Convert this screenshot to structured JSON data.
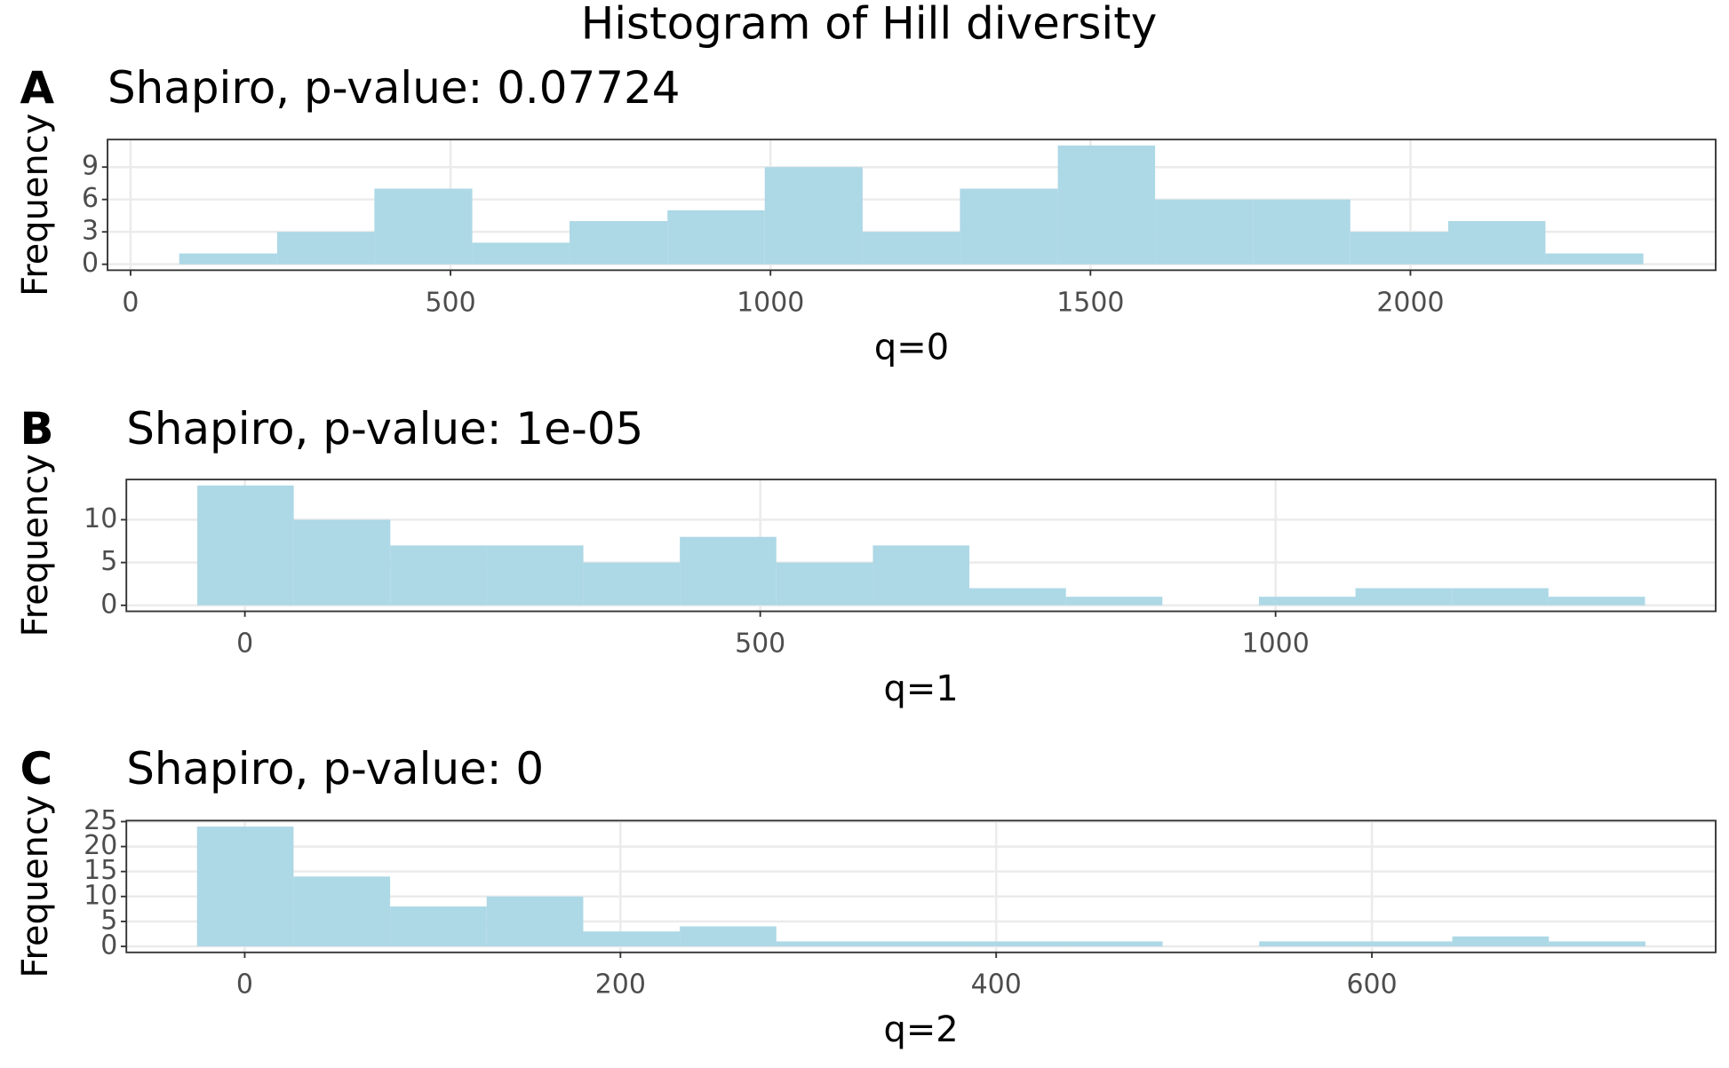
{
  "title": "Histogram of Hill diversity",
  "chart_data": [
    {
      "type": "histogram",
      "tag": "A",
      "title": "Shapiro, p-value: 0.07724",
      "x_label": "q=0",
      "y_label": "Frequency",
      "color": "#add8e6",
      "grid": true,
      "bins": [
        76,
        229,
        381,
        534,
        686,
        839,
        991,
        1144,
        1296,
        1449,
        1601,
        1754,
        1906,
        2059,
        2211,
        2364
      ],
      "counts": [
        1,
        3,
        7,
        2,
        4,
        5,
        9,
        3,
        7,
        11,
        6,
        6,
        3,
        4,
        1
      ],
      "xlim": [
        -36,
        2477
      ],
      "xticks": [
        0,
        500,
        1000,
        1500,
        2000
      ],
      "ylim": [
        -0.55,
        11.55
      ],
      "yticks": [
        0,
        3,
        6,
        9
      ]
    },
    {
      "type": "histogram",
      "tag": "B",
      "title": "Shapiro, p-value: 1e-05",
      "x_label": "q=1",
      "y_label": "Frequency",
      "color": "#add8e6",
      "grid": true,
      "bins": [
        -46.2,
        47.4,
        141.1,
        234.7,
        328.4,
        422.0,
        515.6,
        609.3,
        702.9,
        796.6,
        890.2,
        983.9,
        1077.5,
        1171.1,
        1264.8,
        1358.4
      ],
      "counts": [
        14,
        10,
        7,
        7,
        5,
        8,
        5,
        7,
        2,
        1,
        0,
        1,
        2,
        2,
        1
      ],
      "xlim": [
        -115,
        1427
      ],
      "xticks": [
        0,
        500,
        1000
      ],
      "ylim": [
        -0.7,
        14.7
      ],
      "yticks": [
        0,
        5,
        10
      ]
    },
    {
      "type": "histogram",
      "tag": "C",
      "title": "Shapiro, p-value: 0",
      "x_label": "q=2",
      "y_label": "Frequency",
      "color": "#add8e6",
      "grid": true,
      "bins": [
        -25.4,
        26,
        77.4,
        128.8,
        180.2,
        231.6,
        283,
        334.4,
        385.8,
        437.2,
        488.6,
        540,
        591.4,
        642.8,
        694.2,
        745.6
      ],
      "counts": [
        24,
        14,
        8,
        10,
        3,
        4,
        1,
        1,
        1,
        1,
        0,
        1,
        1,
        2,
        1
      ],
      "xlim": [
        -63,
        783
      ],
      "xticks": [
        0,
        200,
        400,
        600
      ],
      "ylim": [
        -1.2,
        25.2
      ],
      "yticks": [
        0,
        5,
        10,
        15,
        20,
        25
      ]
    }
  ]
}
